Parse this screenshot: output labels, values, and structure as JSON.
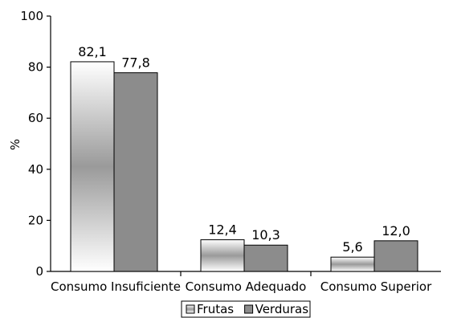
{
  "chart_data": {
    "type": "bar",
    "categories": [
      "Consumo Insuficiente",
      "Consumo Adequado",
      "Consumo Superior"
    ],
    "series": [
      {
        "name": "Frutas",
        "values": [
          82.1,
          12.4,
          5.6
        ],
        "labels": [
          "82,1",
          "12,4",
          "5,6"
        ],
        "fill": "gradient-white-gray"
      },
      {
        "name": "Verduras",
        "values": [
          77.8,
          10.3,
          12.0
        ],
        "labels": [
          "77,8",
          "10,3",
          "12,0"
        ],
        "color": "#8c8c8c"
      }
    ],
    "ylabel": "%",
    "xlabel": "",
    "title": "",
    "ylim": [
      0,
      100
    ],
    "yticks": [
      "0",
      "20",
      "40",
      "60",
      "80",
      "100"
    ],
    "grid": false,
    "legend": "bottom-center"
  }
}
